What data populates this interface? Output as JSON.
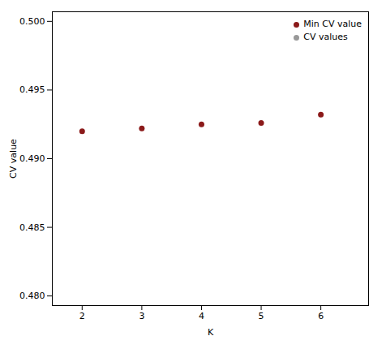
{
  "chart_data": {
    "type": "scatter",
    "xlabel": "K",
    "ylabel": "CV value",
    "x": [
      2,
      3,
      4,
      5,
      6
    ],
    "series": [
      {
        "name": "Min CV value",
        "color": "#8B1A1A",
        "values": [
          0.492,
          0.4922,
          0.4925,
          0.4926,
          0.4932
        ]
      },
      {
        "name": "CV values",
        "color": "#999999",
        "values": [
          null,
          null,
          null,
          null,
          null
        ]
      }
    ],
    "xlim": [
      1.5,
      6.8
    ],
    "ylim": [
      0.4793,
      0.5007
    ],
    "xticks": [
      2,
      3,
      4,
      5,
      6
    ],
    "yticks": [
      {
        "value": 0.48,
        "label": "0.480"
      },
      0.485,
      {
        "value": 0.49,
        "label": "0.490"
      },
      0.495,
      {
        "value": 0.5,
        "label": "0.500"
      }
    ],
    "legend": "upper right"
  }
}
